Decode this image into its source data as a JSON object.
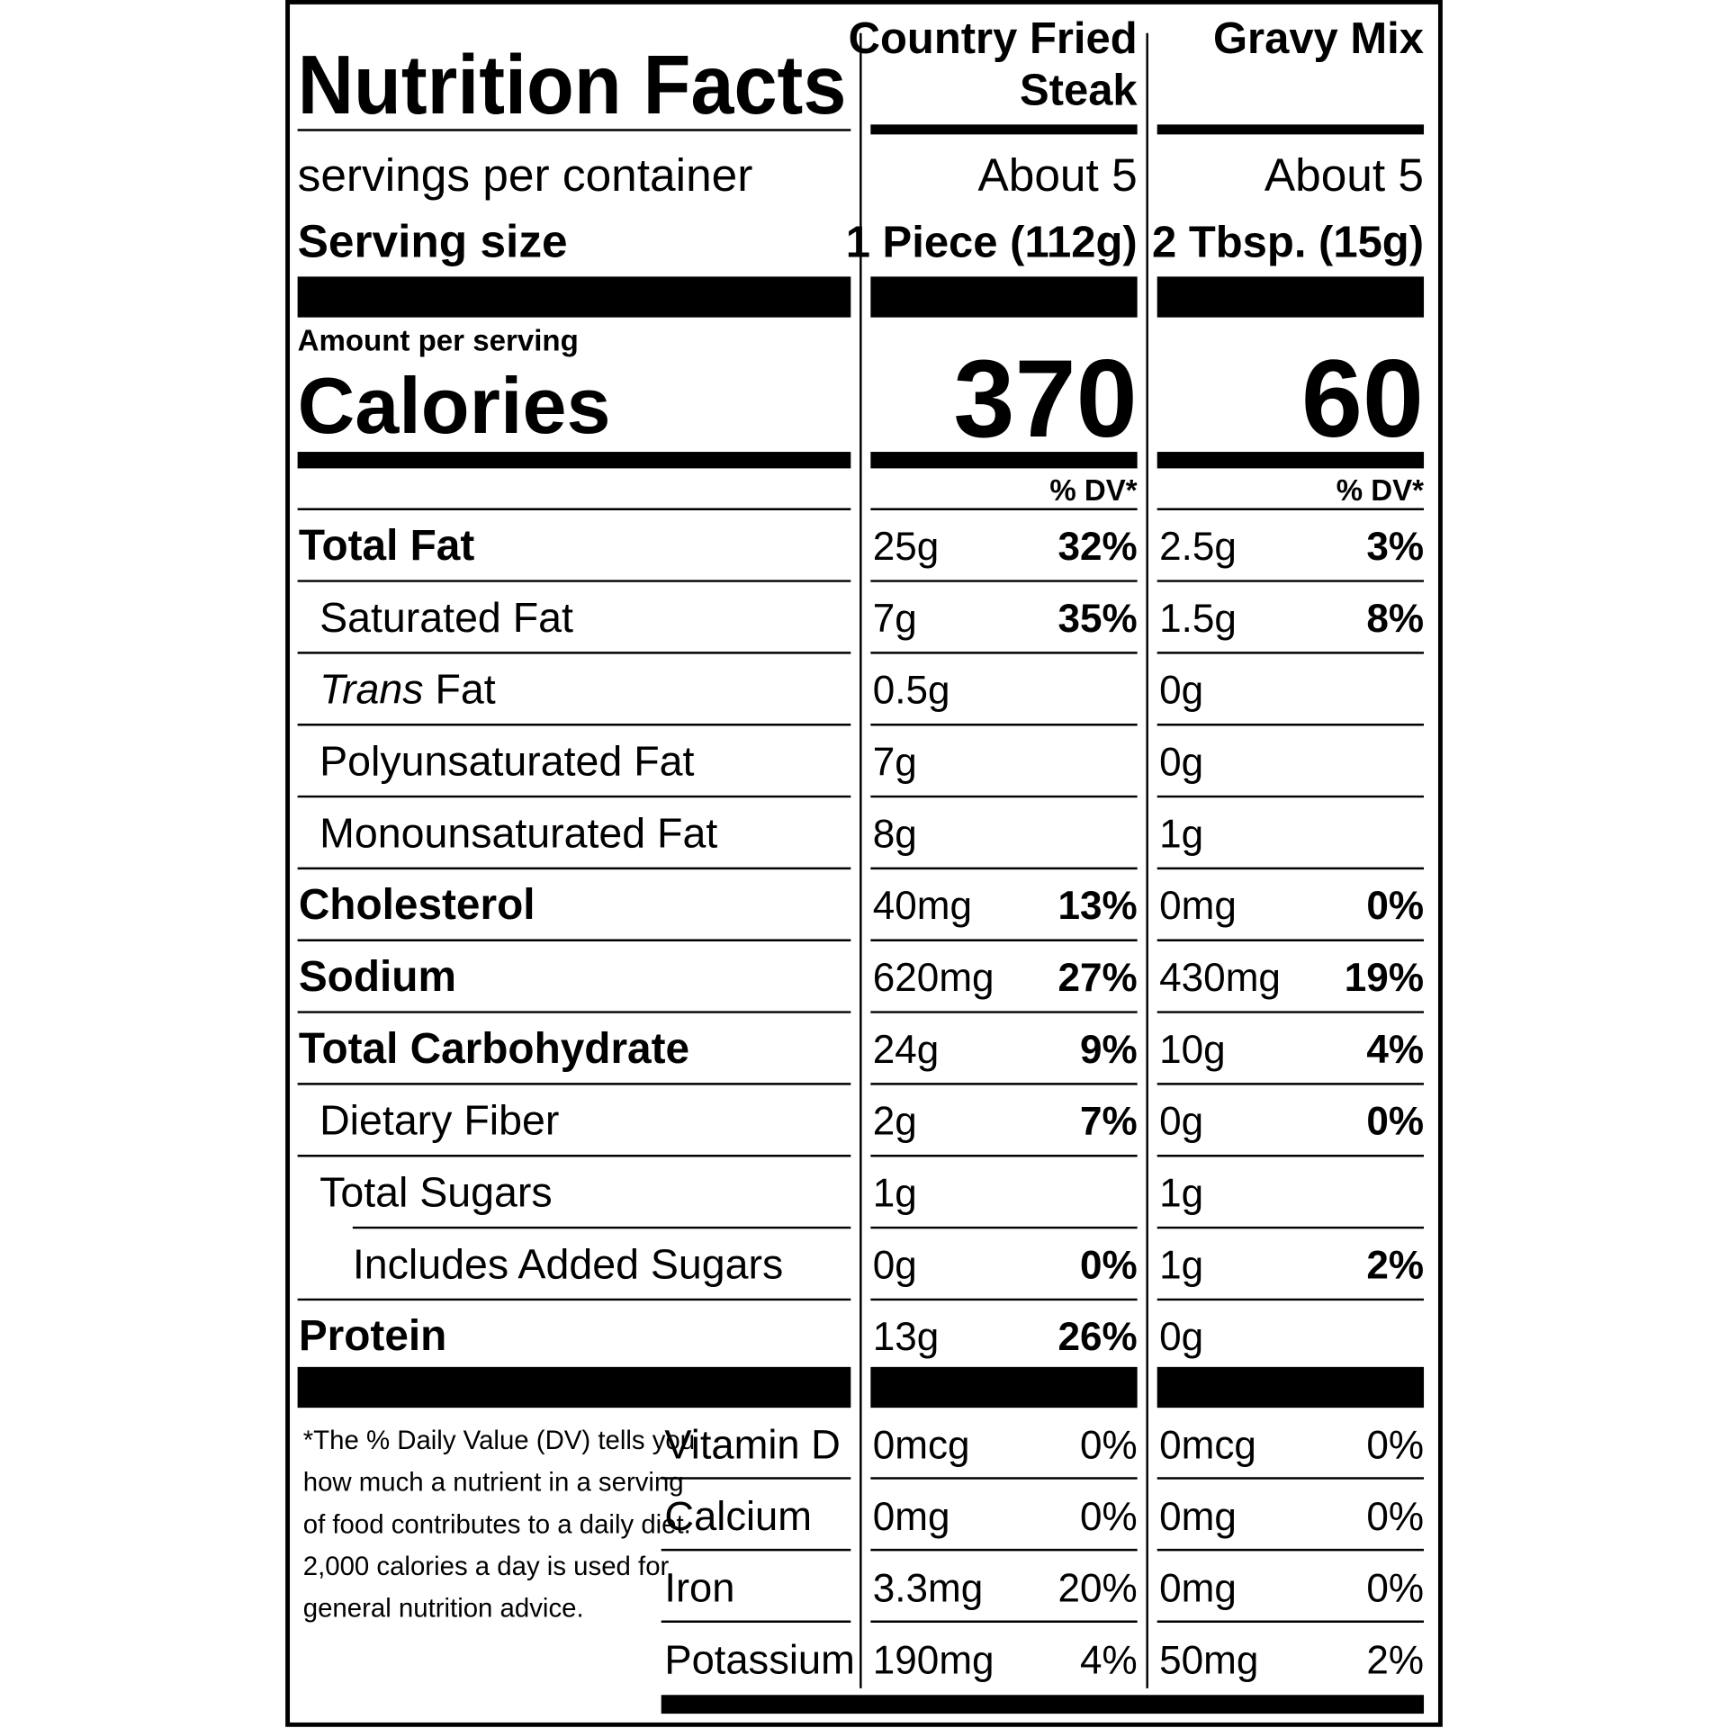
{
  "title": "Nutrition Facts",
  "servings_label": "servings per container",
  "serving_size_label": "Serving size",
  "amount_label": "Amount per serving",
  "calories_label": "Calories",
  "columns": [
    {
      "name_lines": [
        "Country Fried",
        "Steak"
      ],
      "servings": "About 5",
      "serving_size": "1 Piece (112g)",
      "calories": 370,
      "dv_header": "% DV*"
    },
    {
      "name_lines": [
        "Gravy Mix"
      ],
      "servings": "About 5",
      "serving_size": "2 Tbsp. (15g)",
      "calories": 60,
      "dv_header": "% DV*"
    }
  ],
  "nutrients": [
    {
      "label": "Total Fat",
      "style": "bold",
      "values": [
        {
          "amount": "25g",
          "dv": "32%"
        },
        {
          "amount": "2.5g",
          "dv": "3%"
        }
      ]
    },
    {
      "label": "Saturated Fat",
      "style": "indent",
      "values": [
        {
          "amount": "7g",
          "dv": "35%"
        },
        {
          "amount": "1.5g",
          "dv": "8%"
        }
      ]
    },
    {
      "label": "Trans Fat",
      "style": "indent",
      "italic_first_word": true,
      "values": [
        {
          "amount": "0.5g"
        },
        {
          "amount": "0g"
        }
      ]
    },
    {
      "label": "Polyunsaturated Fat",
      "style": "indent",
      "values": [
        {
          "amount": "7g"
        },
        {
          "amount": "0g"
        }
      ]
    },
    {
      "label": "Monounsaturated Fat",
      "style": "indent",
      "values": [
        {
          "amount": "8g"
        },
        {
          "amount": "1g"
        }
      ]
    },
    {
      "label": "Cholesterol",
      "style": "bold",
      "values": [
        {
          "amount": "40mg",
          "dv": "13%"
        },
        {
          "amount": "0mg",
          "dv": "0%"
        }
      ]
    },
    {
      "label": "Sodium",
      "style": "bold",
      "values": [
        {
          "amount": "620mg",
          "dv": "27%"
        },
        {
          "amount": "430mg",
          "dv": "19%"
        }
      ]
    },
    {
      "label": "Total Carbohydrate",
      "style": "bold",
      "values": [
        {
          "amount": "24g",
          "dv": "9%"
        },
        {
          "amount": "10g",
          "dv": "4%"
        }
      ]
    },
    {
      "label": "Dietary Fiber",
      "style": "indent",
      "values": [
        {
          "amount": "2g",
          "dv": "7%"
        },
        {
          "amount": "0g",
          "dv": "0%"
        }
      ]
    },
    {
      "label": "Total Sugars",
      "style": "indent",
      "values": [
        {
          "amount": "1g"
        },
        {
          "amount": "1g"
        }
      ]
    },
    {
      "label": "Includes Added Sugars",
      "style": "indent2",
      "values": [
        {
          "amount": "0g",
          "dv": "0%"
        },
        {
          "amount": "1g",
          "dv": "2%"
        }
      ]
    },
    {
      "label": "Protein",
      "style": "bold",
      "values": [
        {
          "amount": "13g",
          "dv": "26%"
        },
        {
          "amount": "0g"
        }
      ]
    }
  ],
  "footnote_lines": [
    "*The % Daily Value (DV) tells you",
    "how much a nutrient in a serving",
    "of food contributes to a daily diet.",
    "2,000 calories a day is used for",
    "general nutrition advice."
  ],
  "vitamins": [
    {
      "label": "Vitamin D",
      "values": [
        {
          "amount": "0mcg",
          "dv": "0%"
        },
        {
          "amount": "0mcg",
          "dv": "0%"
        }
      ]
    },
    {
      "label": "Calcium",
      "values": [
        {
          "amount": "0mg",
          "dv": "0%"
        },
        {
          "amount": "0mg",
          "dv": "0%"
        }
      ]
    },
    {
      "label": "Iron",
      "values": [
        {
          "amount": "3.3mg",
          "dv": "20%"
        },
        {
          "amount": "0mg",
          "dv": "0%"
        }
      ]
    },
    {
      "label": "Potassium",
      "values": [
        {
          "amount": "190mg",
          "dv": "4%"
        },
        {
          "amount": "50mg",
          "dv": "2%"
        }
      ]
    }
  ]
}
